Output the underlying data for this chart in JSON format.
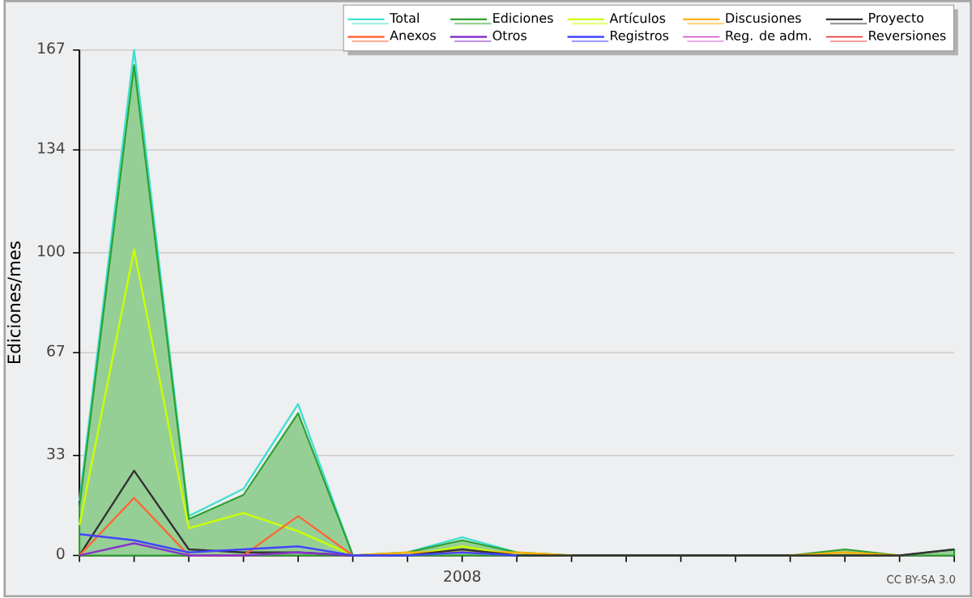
{
  "chart_data": {
    "type": "line",
    "ylabel": "Ediciones/mes",
    "categories": [
      null,
      null,
      null,
      null,
      null,
      null,
      null,
      "2008",
      null,
      null,
      null,
      null,
      null,
      null,
      null,
      null,
      null
    ],
    "ylim": [
      0,
      167
    ],
    "yticks": [
      0,
      33,
      67,
      100,
      134,
      167
    ],
    "grid": "y",
    "legend": "top right",
    "annotations": [
      "CC BY-SA 3.0"
    ],
    "series": [
      {
        "name": "Total",
        "color": "#40e0d0",
        "values": [
          18,
          167,
          13,
          22,
          50,
          0,
          1,
          6,
          1,
          0,
          null,
          null,
          null,
          null,
          null,
          null,
          null
        ]
      },
      {
        "name": "Ediciones",
        "type": "area",
        "color": "#2ca02c",
        "values": [
          16,
          162,
          12,
          20,
          47,
          0,
          1,
          5,
          1,
          0,
          0,
          0,
          0,
          0,
          2,
          0,
          2
        ]
      },
      {
        "name": "Artículos",
        "color": "#ccff00",
        "values": [
          10,
          101,
          9,
          14,
          8,
          0,
          0,
          3,
          0,
          null,
          null,
          null,
          null,
          null,
          null,
          null,
          null
        ]
      },
      {
        "name": "Discusiones",
        "color": "#ffb000",
        "values": [
          null,
          null,
          null,
          null,
          null,
          0,
          1,
          1,
          1,
          0,
          null,
          null,
          null,
          0,
          1,
          0,
          null
        ]
      },
      {
        "name": "Proyecto",
        "color": "#333333",
        "values": [
          0,
          28,
          2,
          1,
          1,
          0,
          0,
          2,
          0,
          0,
          0,
          0,
          0,
          0,
          0,
          0,
          2
        ]
      },
      {
        "name": "Anexos",
        "color": "#ff6633",
        "values": [
          0,
          19,
          0,
          0,
          13,
          0,
          null,
          null,
          null,
          null,
          null,
          null,
          null,
          null,
          null,
          null,
          null
        ]
      },
      {
        "name": "Otros",
        "color": "#8833cc",
        "values": [
          0,
          4,
          0,
          0,
          1,
          0,
          null,
          null,
          null,
          null,
          null,
          null,
          null,
          null,
          null,
          null,
          null
        ]
      },
      {
        "name": "Registros",
        "color": "#4444ff",
        "values": [
          7,
          5,
          1,
          2,
          3,
          0,
          0,
          1,
          0,
          null,
          null,
          null,
          null,
          null,
          null,
          null,
          null
        ]
      },
      {
        "name": "Reg. de adm.",
        "color": "#cc44cc",
        "values": [
          null,
          null,
          null,
          null,
          null,
          null,
          null,
          null,
          null,
          null,
          null,
          null,
          null,
          null,
          null,
          null,
          null
        ]
      },
      {
        "name": "Reversiones",
        "color": "#ee2222",
        "values": [
          null,
          null,
          null,
          null,
          null,
          null,
          null,
          null,
          null,
          null,
          null,
          null,
          null,
          null,
          null,
          null,
          null
        ]
      }
    ]
  }
}
